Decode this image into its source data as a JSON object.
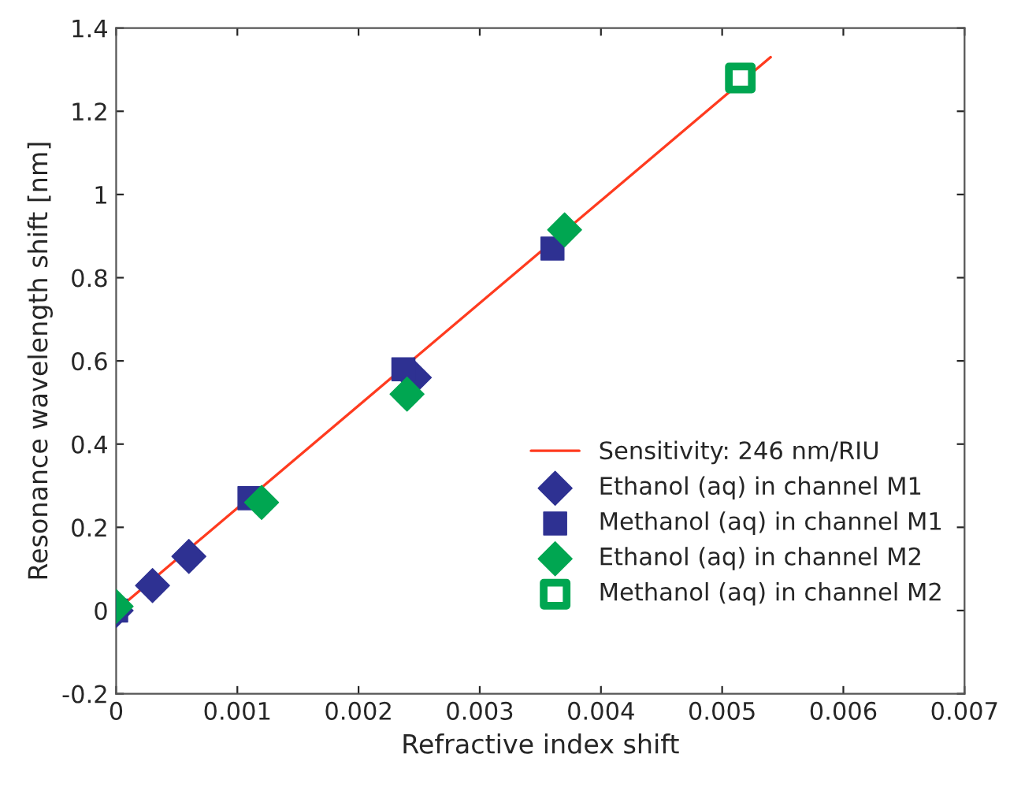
{
  "chart_data": {
    "type": "scatter",
    "xlabel": "Refractive index shift",
    "ylabel": "Resonance wavelength shift [nm]",
    "xlim": [
      0,
      0.007
    ],
    "xticks": [
      0,
      0.001,
      0.002,
      0.003,
      0.004,
      0.005,
      0.006,
      0.007
    ],
    "ylim": [
      -0.2,
      1.4
    ],
    "yticks": [
      -0.2,
      0,
      0.2,
      0.4,
      0.6,
      0.8,
      1,
      1.2,
      1.4
    ],
    "grid": false,
    "legend": "bottom right",
    "series": [
      {
        "name": "Sensitivity: 246 nm/RIU",
        "type": "line",
        "color": "#ff3b1f",
        "marker": "none",
        "line_style": "solid",
        "x": [
          0,
          0.0054
        ],
        "values": [
          0,
          1.33
        ]
      },
      {
        "name": "Ethanol (aq) in channel M1",
        "color": "#2e3192",
        "marker": "diamond",
        "x": [
          0,
          0.0003,
          0.0006,
          0.00246
        ],
        "values": [
          0,
          0.06,
          0.13,
          0.56
        ]
      },
      {
        "name": "Methanol (aq) in channel M1",
        "color": "#2e3192",
        "marker": "square",
        "x": [
          0,
          0.0011,
          0.00237,
          0.0036
        ],
        "values": [
          0,
          0.27,
          0.58,
          0.87
        ]
      },
      {
        "name": "Ethanol (aq) in channel M2",
        "color": "#00a651",
        "marker": "diamond",
        "x": [
          0,
          0.0012,
          0.0024,
          0.0037
        ],
        "values": [
          0.01,
          0.26,
          0.52,
          0.915
        ]
      },
      {
        "name": "Methanol (aq) in channel M2",
        "color": "#00a651",
        "marker": "square",
        "x": [
          0.00515
        ],
        "values": [
          1.28
        ]
      }
    ]
  }
}
